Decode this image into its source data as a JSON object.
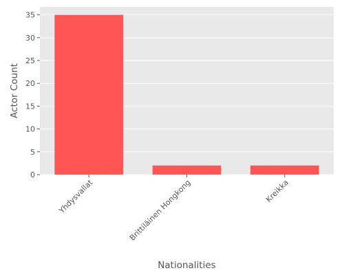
{
  "chart_data": {
    "type": "bar",
    "title": "",
    "xlabel": "Nationalities",
    "ylabel": "Actor Count",
    "categories": [
      "Yhdysvallat",
      "Brittiläinen Hongkong",
      "Kreikka"
    ],
    "values": [
      35,
      2,
      2
    ],
    "ylim": [
      0,
      36.75
    ],
    "yticks": [
      0,
      5,
      10,
      15,
      20,
      25,
      30,
      35
    ],
    "grid": true,
    "legend": "none",
    "x_tick_rotation_deg": 45,
    "colors": {
      "bar": "#ff5555",
      "plot_background": "#e9e9e9",
      "grid": "#ffffff",
      "text": "#555555"
    }
  }
}
